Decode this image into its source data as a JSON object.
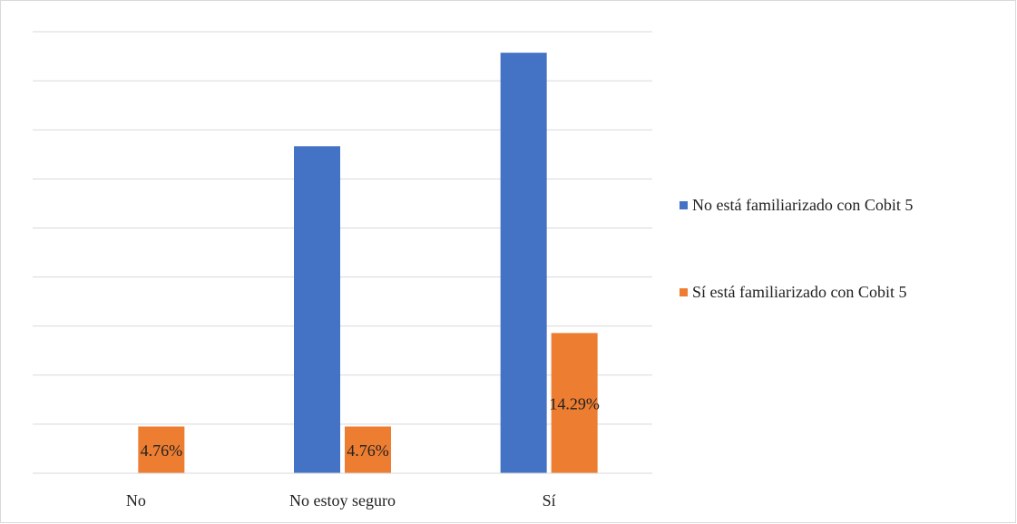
{
  "chart_data": {
    "type": "bar",
    "categories": [
      "No",
      "No estoy seguro",
      "Sí"
    ],
    "ylim": [
      0,
      45
    ],
    "grid": true,
    "legend_position": "right",
    "series": [
      {
        "name": "No está familiarizado con Cobit 5",
        "color": "#4472C4",
        "values": [
          0,
          33.33,
          42.86
        ],
        "labels": [
          "",
          "",
          ""
        ]
      },
      {
        "name": "Sí está familiarizado con Cobit 5",
        "color": "#ED7D31",
        "values": [
          4.76,
          4.76,
          14.29
        ],
        "labels": [
          "4.76%",
          "4.76%",
          "14.29%"
        ]
      }
    ]
  }
}
